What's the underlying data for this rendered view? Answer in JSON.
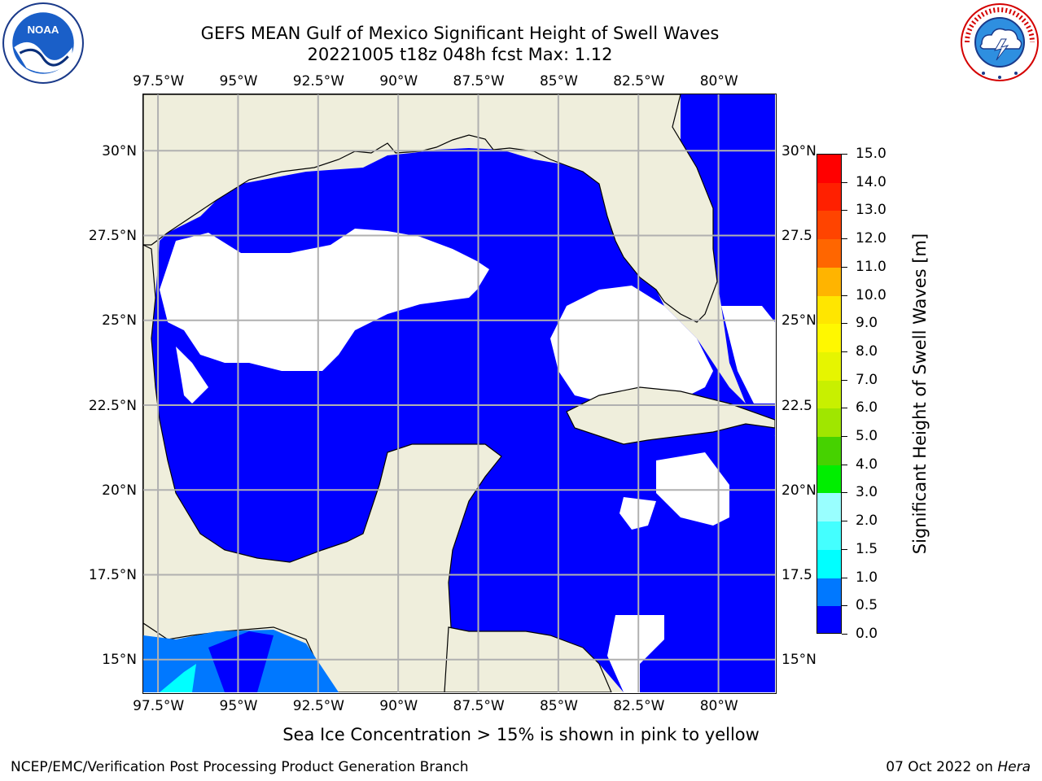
{
  "header": {
    "title_line1": "GEFS MEAN Gulf of Mexico Significant Height of Swell Waves",
    "title_line2": "20221005 t18z 048h fcst   Max: 1.12"
  },
  "logos": {
    "left": "noaa-logo",
    "right": "nws-logo"
  },
  "map": {
    "lon_ticks": [
      "97.5°W",
      "95°W",
      "92.5°W",
      "90°W",
      "87.5°W",
      "85°W",
      "82.5°W",
      "80°W"
    ],
    "lat_ticks_left": [
      "30°N",
      "27.5°N",
      "25°N",
      "22.5°N",
      "20°N",
      "17.5°N",
      "15°N"
    ],
    "lat_ticks_right": [
      "30°N",
      "27.5",
      "25°N",
      "22.5",
      "20°N",
      "17.5",
      "15°N"
    ],
    "lon_range": [
      -98,
      -78.2
    ],
    "lat_range": [
      14,
      31.7
    ],
    "grid": true,
    "colors": {
      "land": "#efeedc",
      "ocean_low": "#0000ff",
      "ocean_mid": "#0078ff",
      "ocean_high": "#00ffff",
      "no_data": "#ffffff",
      "grid": "#b0b0b0"
    }
  },
  "colorbar": {
    "labels": [
      "15.0",
      "14.0",
      "13.0",
      "12.0",
      "11.0",
      "10.0",
      "9.0",
      "8.0",
      "7.0",
      "6.0",
      "5.0",
      "4.0",
      "3.0",
      "2.0",
      "1.5",
      "1.0",
      "0.5",
      "0.0"
    ],
    "colors": [
      "#ff0000",
      "#ff2000",
      "#ff4400",
      "#ff6600",
      "#ff8c00",
      "#ffb400",
      "#ffe600",
      "#fff800",
      "#e6f500",
      "#c8f000",
      "#a0e600",
      "#46d200",
      "#00ee00",
      "#00ff88",
      "#99ffff",
      "#44ffff",
      "#00ffff",
      "#0078ff",
      "#0000ff"
    ],
    "title": "Significant Height of Swell Waves [m]"
  },
  "footer": {
    "caption": "Sea Ice Concentration > 15% is shown in pink to yellow",
    "left": "NCEP/EMC/Verification Post Processing Product Generation Branch",
    "right_date": "07 Oct 2022 on ",
    "right_host": "Hera"
  }
}
